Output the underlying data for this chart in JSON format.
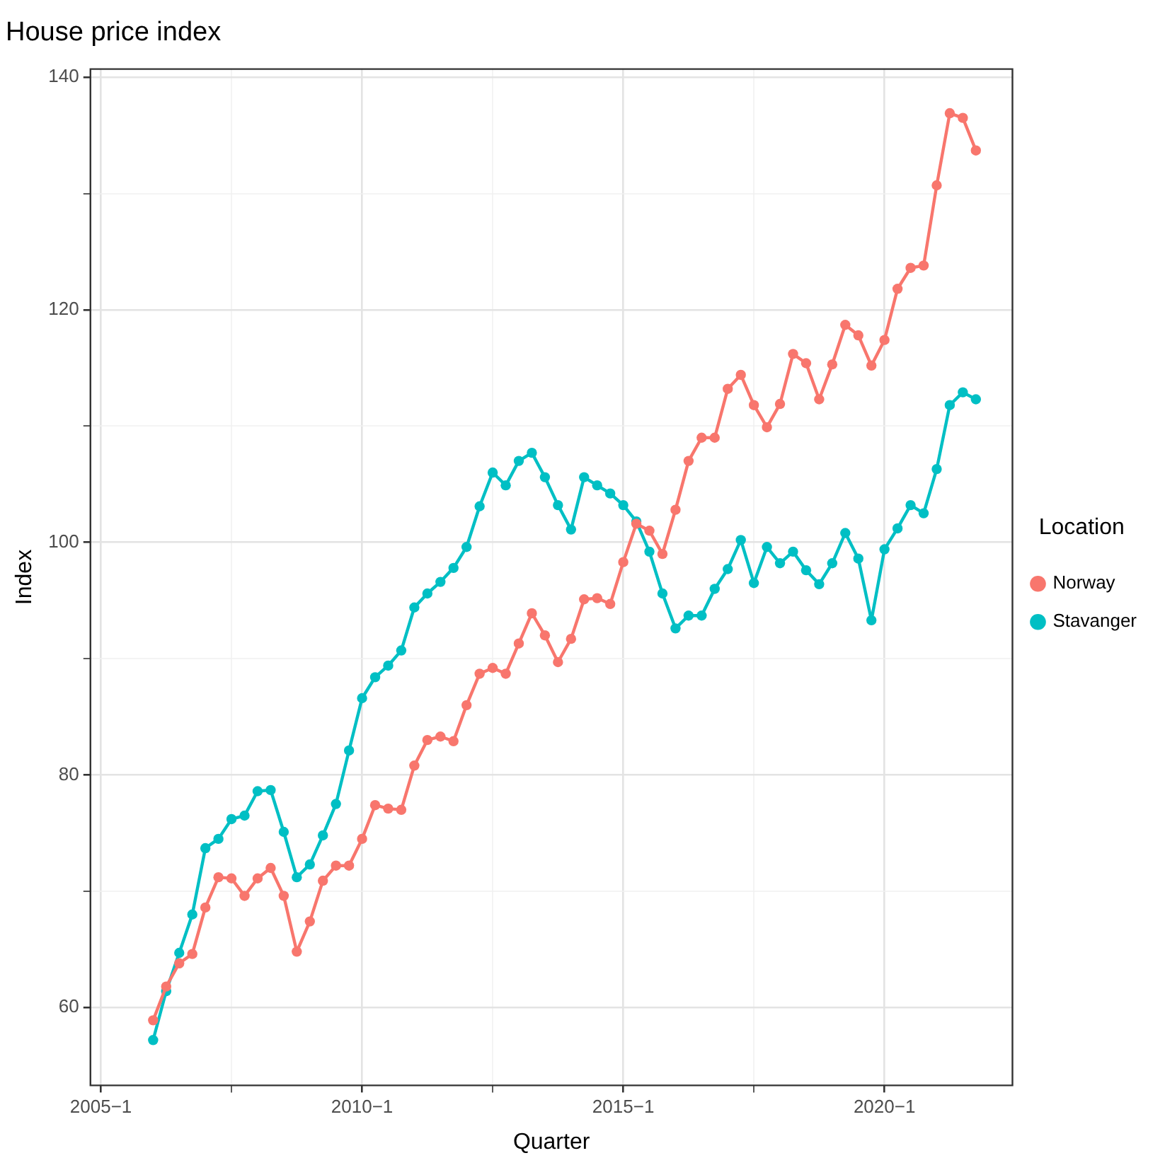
{
  "chart_data": {
    "type": "line",
    "title": "House price index",
    "xlabel": "Quarter",
    "ylabel": "Index",
    "legend_title": "Location",
    "legend": "right",
    "grid": true,
    "marker": "circle",
    "line_style": "solid",
    "categories": [
      "2005−1",
      null,
      null,
      null,
      null,
      null,
      null,
      null,
      null,
      null,
      null,
      null,
      null,
      null,
      null,
      null,
      null,
      null,
      null,
      null,
      "2010−1",
      null,
      null,
      null,
      null,
      null,
      null,
      null,
      null,
      null,
      null,
      null,
      null,
      null,
      null,
      null,
      null,
      null,
      null,
      null,
      "2015−1",
      null,
      null,
      null,
      null,
      null,
      null,
      null,
      null,
      null,
      null,
      null,
      null,
      null,
      null,
      null,
      null,
      null,
      null,
      null,
      "2020−1",
      null,
      null,
      null,
      null,
      null,
      null,
      null
    ],
    "series": [
      {
        "name": "Norway",
        "color": "#f8766d",
        "values": [
          null,
          null,
          null,
          null,
          58.9,
          61.8,
          63.8,
          64.6,
          68.6,
          71.2,
          71.1,
          69.6,
          71.1,
          72.0,
          69.6,
          64.8,
          67.4,
          70.9,
          72.2,
          72.2,
          74.5,
          77.4,
          77.1,
          77.0,
          80.8,
          83.0,
          83.3,
          82.9,
          86.0,
          88.7,
          89.2,
          88.7,
          91.3,
          93.9,
          92.0,
          89.7,
          91.7,
          95.1,
          95.2,
          94.7,
          98.3,
          101.6,
          101.0,
          99.0,
          102.8,
          107.0,
          109.0,
          109.0,
          113.2,
          114.4,
          111.8,
          109.9,
          111.9,
          116.2,
          115.4,
          112.3,
          115.3,
          118.7,
          117.8,
          115.2,
          117.4,
          121.8,
          123.6,
          123.8,
          130.7,
          136.9,
          136.5,
          133.7
        ]
      },
      {
        "name": "Stavanger",
        "color": "#00bfc4",
        "values": [
          null,
          null,
          null,
          null,
          57.2,
          61.4,
          64.7,
          68.0,
          73.7,
          74.5,
          76.2,
          76.5,
          78.6,
          78.7,
          75.1,
          71.2,
          72.3,
          74.8,
          77.5,
          82.1,
          86.6,
          88.4,
          89.4,
          90.7,
          94.4,
          95.6,
          96.6,
          97.8,
          99.6,
          103.1,
          106.0,
          104.9,
          107.0,
          107.7,
          105.6,
          103.2,
          101.1,
          105.6,
          104.9,
          104.2,
          103.2,
          101.8,
          99.2,
          95.6,
          92.6,
          93.7,
          93.7,
          96.0,
          97.7,
          100.2,
          96.5,
          99.6,
          98.2,
          99.2,
          97.6,
          96.4,
          98.2,
          100.8,
          98.6,
          93.3,
          99.4,
          101.2,
          103.2,
          102.5,
          106.3,
          111.8,
          112.9,
          112.3
        ]
      }
    ],
    "ylim": [
      53.3,
      140.7
    ],
    "yticks": [
      60,
      {
        "value": 70,
        "label": null
      },
      80,
      {
        "value": 90,
        "label": null
      },
      100,
      {
        "value": 110,
        "label": null
      },
      120,
      {
        "value": 130,
        "label": null
      },
      140
    ]
  }
}
